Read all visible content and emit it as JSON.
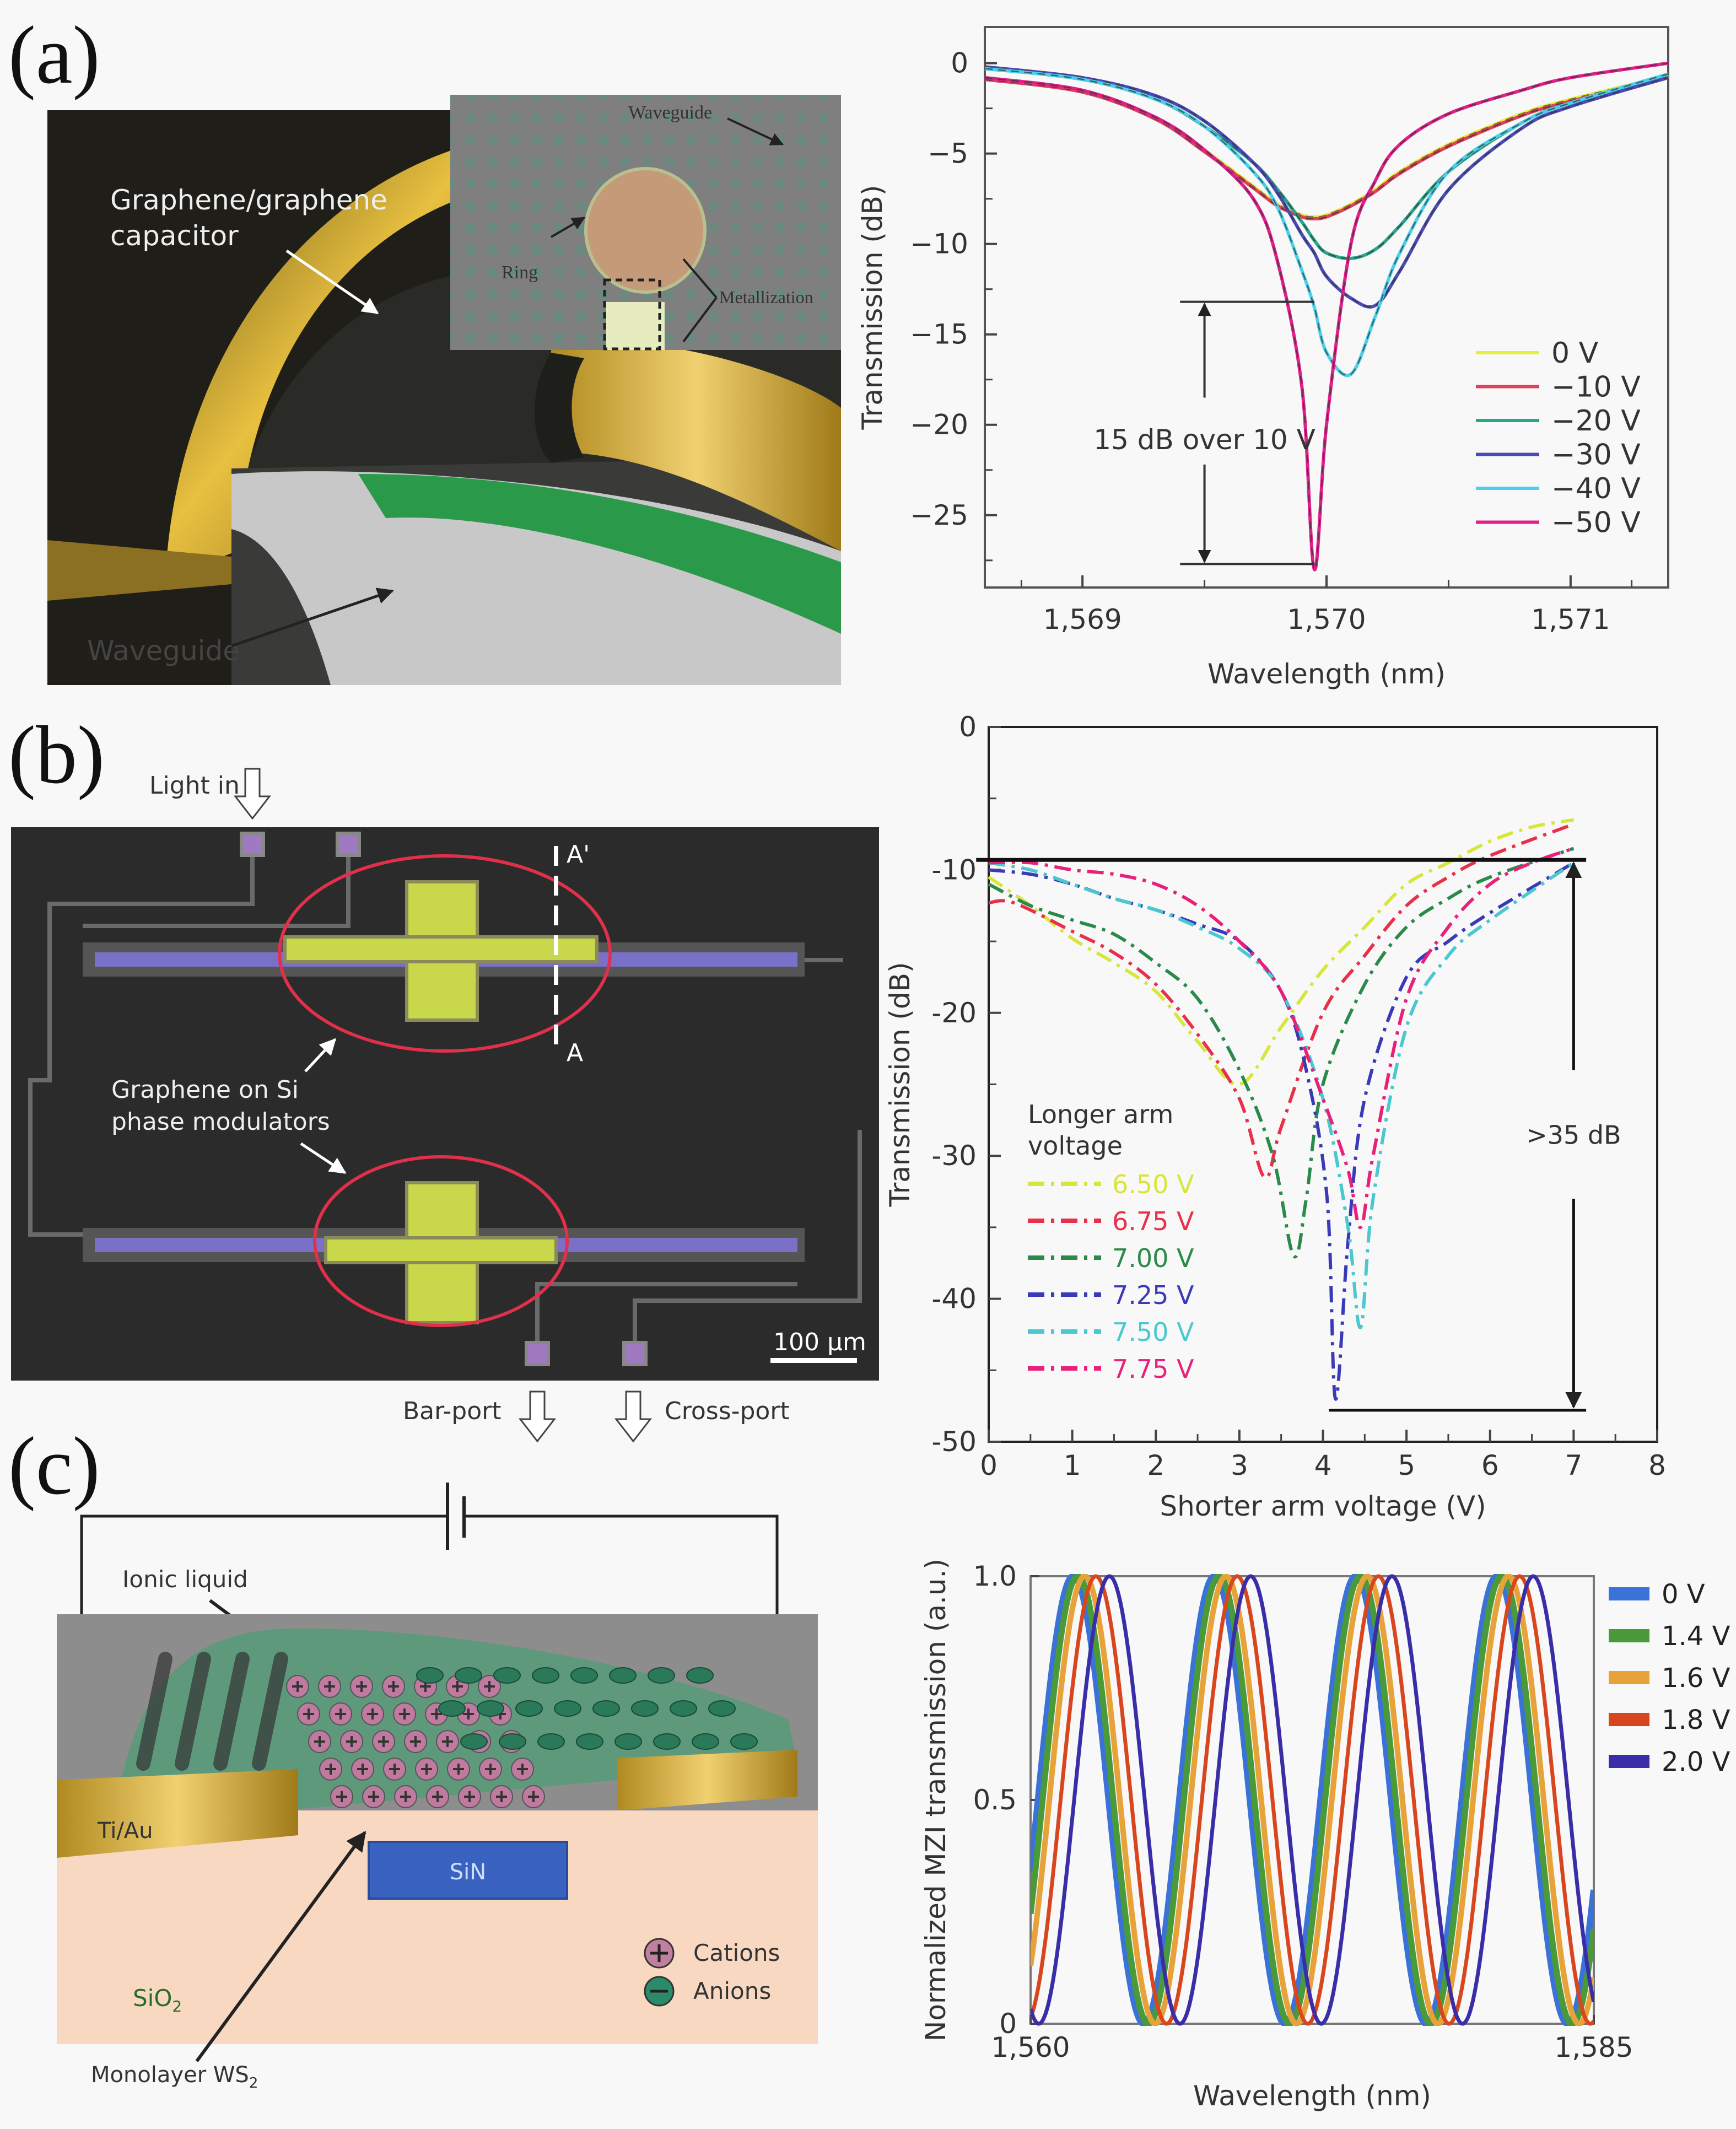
{
  "panels": {
    "a": {
      "label": "(a)",
      "illustration": {
        "capacitor_label_1": "Graphene/graphene",
        "capacitor_label_2": "capacitor",
        "waveguide_label": "Waveguide",
        "inset": {
          "waveguide": "Waveguide",
          "ring": "Ring",
          "metallization": "Metallization"
        }
      }
    },
    "b": {
      "label": "(b)",
      "illustration": {
        "light_in": "Light in",
        "modulators_1": "Graphene on Si",
        "modulators_2": "phase modulators",
        "section_a_prime": "A'",
        "section_a": "A",
        "scale_bar": "100 μm",
        "bar_port": "Bar-port",
        "cross_port": "Cross-port"
      }
    },
    "c": {
      "label": "(c)",
      "illustration": {
        "ionic_liquid": "Ionic liquid",
        "electrode": "Ti/Au",
        "core": "SiN",
        "substrate": "SiO",
        "substrate_sub": "2",
        "cations": "Cations",
        "anions": "Anions",
        "monolayer": "Monolayer WS",
        "monolayer_sub": "2"
      }
    }
  },
  "chart_data": [
    {
      "id": "a",
      "type": "line",
      "xlabel": "Wavelength (nm)",
      "ylabel": "Transmission (dB)",
      "xlim": [
        1568.6,
        1571.4
      ],
      "ylim": [
        -29,
        2
      ],
      "xticks": [
        {
          "v": 1569,
          "label": "1,569"
        },
        {
          "v": 1570,
          "label": "1,570"
        },
        {
          "v": 1571,
          "label": "1,571"
        }
      ],
      "yticks": [
        {
          "v": 0,
          "label": "0"
        },
        {
          "v": -5,
          "label": "−5"
        },
        {
          "v": -10,
          "label": "−10"
        },
        {
          "v": -15,
          "label": "−15"
        },
        {
          "v": -20,
          "label": "−20"
        },
        {
          "v": -25,
          "label": "−25"
        }
      ],
      "grid": false,
      "legend": "right",
      "x": [
        1568.6,
        1569.0,
        1569.3,
        1569.5,
        1569.7,
        1569.8,
        1569.9,
        1569.95,
        1570.0,
        1570.1,
        1570.2,
        1570.3,
        1570.5,
        1570.8,
        1571.0,
        1571.4
      ],
      "series": [
        {
          "name": "0 V",
          "color": "#e6ef3a",
          "y": [
            -0.8,
            -1.5,
            -3,
            -4.8,
            -6.8,
            -7.8,
            -8.4,
            -8.5,
            -8.4,
            -7.8,
            -7,
            -6,
            -4.5,
            -2.8,
            -2,
            -0.7
          ]
        },
        {
          "name": "−10 V",
          "color": "#e0405a",
          "y": [
            -0.9,
            -1.6,
            -3.1,
            -4.9,
            -6.9,
            -7.9,
            -8.5,
            -8.6,
            -8.5,
            -7.9,
            -7.1,
            -6.1,
            -4.6,
            -2.9,
            -2.1,
            -0.8
          ]
        },
        {
          "name": "−20 V",
          "color": "#2aa58a",
          "y": [
            -0.3,
            -0.9,
            -2,
            -3.5,
            -5.5,
            -7,
            -8.8,
            -9.8,
            -10.5,
            -10.8,
            -10.3,
            -9,
            -6,
            -3.3,
            -2.2,
            -0.8
          ]
        },
        {
          "name": "−30 V",
          "color": "#4a4ab8",
          "y": [
            -0.2,
            -0.8,
            -1.8,
            -3.2,
            -5.5,
            -7.2,
            -9.5,
            -10.5,
            -11.8,
            -13,
            -13.4,
            -11.5,
            -7,
            -3.6,
            -2.4,
            -0.8
          ]
        },
        {
          "name": "−40 V",
          "color": "#4ad0e8",
          "y": [
            -0.3,
            -0.9,
            -2,
            -3.5,
            -6,
            -8,
            -11.5,
            -13.5,
            -16,
            -17.2,
            -14,
            -10.5,
            -6,
            -3.3,
            -2.2,
            -0.6
          ]
        },
        {
          "name": "−50 V",
          "color": "#e0208a",
          "y": [
            -0.8,
            -1.5,
            -3,
            -4.8,
            -7.5,
            -11,
            -18,
            -28,
            -20,
            -10,
            -6.5,
            -4.5,
            -2.8,
            -1.5,
            -0.8,
            0
          ]
        }
      ],
      "annotation": {
        "text": "15 dB over 10 V",
        "x": 1569.5,
        "y_top": -13.2,
        "y_bottom": -27.7,
        "line_x_end": 1569.95
      }
    },
    {
      "id": "b",
      "type": "line",
      "xlabel": "Shorter arm voltage (V)",
      "ylabel": "Transmission (dB)",
      "xlim": [
        0,
        8
      ],
      "ylim": [
        -50,
        0
      ],
      "xticks": [
        {
          "v": 0,
          "label": "0"
        },
        {
          "v": 1,
          "label": "1"
        },
        {
          "v": 2,
          "label": "2"
        },
        {
          "v": 3,
          "label": "3"
        },
        {
          "v": 4,
          "label": "4"
        },
        {
          "v": 5,
          "label": "5"
        },
        {
          "v": 6,
          "label": "6"
        },
        {
          "v": 7,
          "label": "7"
        },
        {
          "v": 8,
          "label": "8"
        }
      ],
      "yticks": [
        {
          "v": 0,
          "label": "0"
        },
        {
          "v": -10,
          "label": "-10"
        },
        {
          "v": -20,
          "label": "-20"
        },
        {
          "v": -30,
          "label": "-30"
        },
        {
          "v": -40,
          "label": "-40"
        },
        {
          "v": -50,
          "label": "-50"
        }
      ],
      "grid": false,
      "legend": "bottom-left",
      "legend_title_1": "Longer arm",
      "legend_title_2": "voltage",
      "series": [
        {
          "name": "6.50 V",
          "color": "#d8e63a",
          "points": [
            [
              0,
              -10.5
            ],
            [
              0.5,
              -12.5
            ],
            [
              1,
              -14.8
            ],
            [
              1.5,
              -16.5
            ],
            [
              2,
              -18.5
            ],
            [
              2.5,
              -22
            ],
            [
              3,
              -25
            ],
            [
              3.5,
              -21
            ],
            [
              4,
              -17
            ],
            [
              4.5,
              -14
            ],
            [
              5,
              -11
            ],
            [
              5.5,
              -9.5
            ],
            [
              6,
              -8
            ],
            [
              6.5,
              -7
            ],
            [
              7,
              -6.5
            ]
          ]
        },
        {
          "name": "6.75 V",
          "color": "#e8304a",
          "points": [
            [
              0,
              -12.3
            ],
            [
              0.3,
              -12.3
            ],
            [
              1,
              -14.3
            ],
            [
              1.5,
              -15.8
            ],
            [
              2,
              -18
            ],
            [
              2.5,
              -21.5
            ],
            [
              3,
              -26
            ],
            [
              3.3,
              -31.5
            ],
            [
              3.5,
              -28
            ],
            [
              4,
              -20
            ],
            [
              4.5,
              -16
            ],
            [
              5,
              -12.5
            ],
            [
              5.5,
              -10.5
            ],
            [
              6,
              -9
            ],
            [
              7,
              -6.8
            ]
          ]
        },
        {
          "name": "7.00 V",
          "color": "#2a8a4a",
          "points": [
            [
              0,
              -11
            ],
            [
              0.5,
              -12.5
            ],
            [
              1,
              -13.5
            ],
            [
              1.5,
              -14.5
            ],
            [
              2,
              -16.5
            ],
            [
              2.5,
              -19
            ],
            [
              3,
              -24
            ],
            [
              3.4,
              -30
            ],
            [
              3.65,
              -37
            ],
            [
              3.8,
              -33
            ],
            [
              4,
              -25
            ],
            [
              4.5,
              -18
            ],
            [
              5,
              -14
            ],
            [
              5.5,
              -12
            ],
            [
              6,
              -10.5
            ],
            [
              7,
              -8.5
            ]
          ]
        },
        {
          "name": "7.25 V",
          "color": "#3a3ab8",
          "points": [
            [
              0,
              -10
            ],
            [
              0.5,
              -10.3
            ],
            [
              1,
              -11
            ],
            [
              1.5,
              -12
            ],
            [
              2,
              -12.8
            ],
            [
              2.5,
              -13.8
            ],
            [
              3,
              -15
            ],
            [
              3.5,
              -18.5
            ],
            [
              3.8,
              -24
            ],
            [
              4.05,
              -33
            ],
            [
              4.15,
              -47
            ],
            [
              4.3,
              -36
            ],
            [
              4.5,
              -26
            ],
            [
              5,
              -17.5
            ],
            [
              5.5,
              -15
            ],
            [
              6,
              -13
            ],
            [
              7,
              -9.5
            ]
          ]
        },
        {
          "name": "7.50 V",
          "color": "#4ac8d0",
          "points": [
            [
              0,
              -9.5
            ],
            [
              0.5,
              -10
            ],
            [
              1,
              -11
            ],
            [
              1.5,
              -12
            ],
            [
              2,
              -12.8
            ],
            [
              2.5,
              -14
            ],
            [
              3,
              -15.5
            ],
            [
              3.5,
              -18.5
            ],
            [
              4,
              -26
            ],
            [
              4.3,
              -35
            ],
            [
              4.45,
              -42
            ],
            [
              4.6,
              -33
            ],
            [
              5,
              -21
            ],
            [
              5.5,
              -16
            ],
            [
              6,
              -13.5
            ],
            [
              7,
              -9.5
            ]
          ]
        },
        {
          "name": "7.75 V",
          "color": "#e8207a",
          "points": [
            [
              0,
              -9.5
            ],
            [
              0.5,
              -9.5
            ],
            [
              1,
              -10
            ],
            [
              1.5,
              -10.3
            ],
            [
              2,
              -11
            ],
            [
              2.5,
              -12.5
            ],
            [
              3,
              -15
            ],
            [
              3.5,
              -18.5
            ],
            [
              4,
              -26
            ],
            [
              4.3,
              -31
            ],
            [
              4.45,
              -35
            ],
            [
              4.6,
              -30
            ],
            [
              5,
              -19
            ],
            [
              5.5,
              -14
            ],
            [
              6,
              -11
            ],
            [
              6.5,
              -9.5
            ],
            [
              7,
              -8.5
            ]
          ]
        }
      ],
      "annotation": {
        "text": ">35 dB",
        "x": 7,
        "y_top": -9.3,
        "y_bottom": -47.8,
        "top_line_x": [
          -0.15,
          7.15
        ],
        "bottom_line_x": [
          4.07,
          7.15
        ]
      }
    },
    {
      "id": "c",
      "type": "line",
      "xlabel": "Wavelength (nm)",
      "ylabel": "Normalized MZI transmission (a.u.)",
      "xlim": [
        1560,
        1585
      ],
      "ylim": [
        0,
        1
      ],
      "xticks": [
        {
          "v": 1560,
          "label": "1,560"
        },
        {
          "v": 1585,
          "label": "1,585"
        }
      ],
      "yticks": [
        {
          "v": 0,
          "label": "0"
        },
        {
          "v": 0.5,
          "label": "0.5"
        },
        {
          "v": 1,
          "label": "1.0"
        }
      ],
      "grid": false,
      "legend": "right",
      "fringe_period_nm": 6.27,
      "series": [
        {
          "name": "0 V",
          "color": "#3a72d8",
          "first_peak_nm": 1561.9
        },
        {
          "name": "1.4 V",
          "color": "#4a9a3a",
          "first_peak_nm": 1562.1
        },
        {
          "name": "1.6 V",
          "color": "#e8a23a",
          "first_peak_nm": 1562.4
        },
        {
          "name": "1.8 V",
          "color": "#d8461e",
          "first_peak_nm": 1562.9
        },
        {
          "name": "2.0 V",
          "color": "#3a2ea8",
          "first_peak_nm": 1563.5
        }
      ]
    }
  ]
}
